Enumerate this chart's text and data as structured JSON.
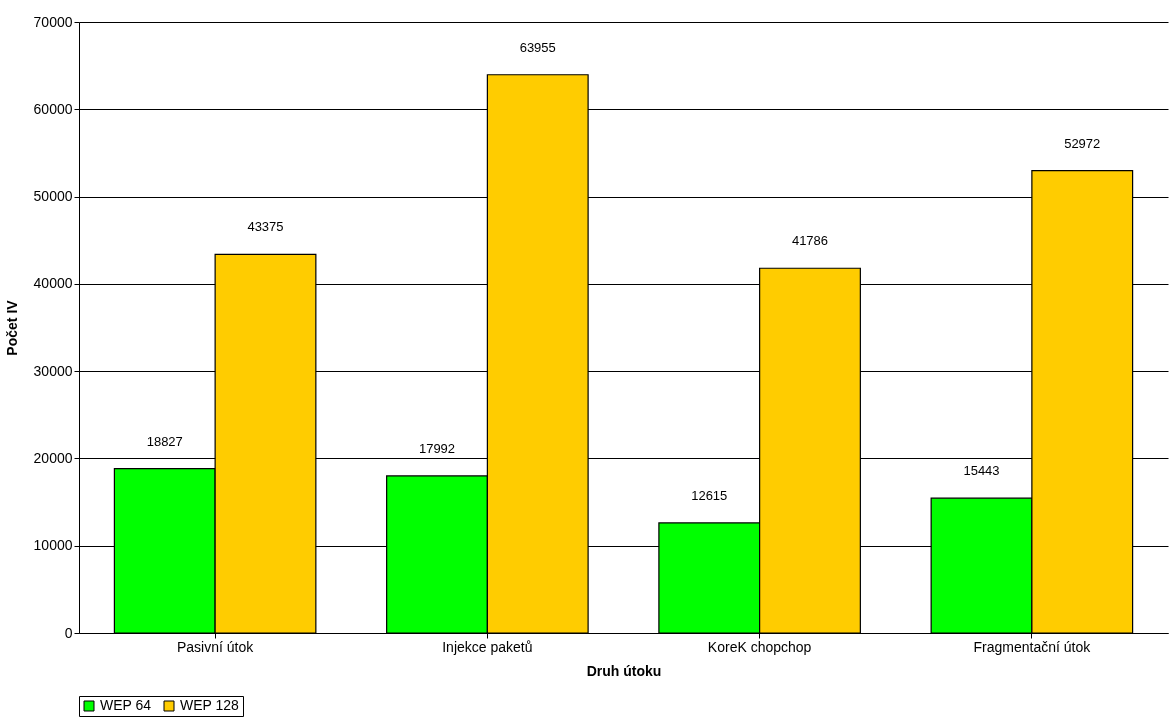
{
  "chart_data": {
    "type": "bar",
    "xlabel": "Druh útoku",
    "ylabel": "Počet IV",
    "categories": [
      "Pasivní útok",
      "Injekce paketů",
      "KoreK chopchop",
      "Fragmentační útok"
    ],
    "series": [
      {
        "name": "WEP 64",
        "color": "#00ff00",
        "values": [
          18827,
          17992,
          12615,
          15443
        ]
      },
      {
        "name": "WEP 128",
        "color": "#ffcc00",
        "values": [
          43375,
          63955,
          41786,
          52972
        ]
      }
    ],
    "ylim": [
      0,
      70000
    ],
    "yticks": [
      0,
      10000,
      20000,
      30000,
      40000,
      50000,
      60000,
      70000
    ],
    "grid": "y",
    "legend": "bottom",
    "data_labels": true
  }
}
